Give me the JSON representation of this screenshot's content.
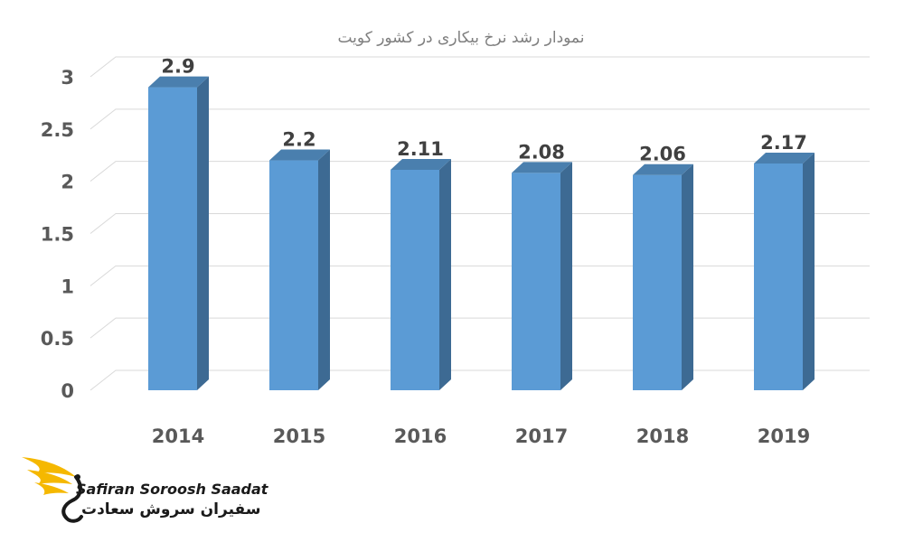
{
  "chart_data": {
    "type": "bar",
    "title": "نمودار رشد نرخ بیکاری در کشور کویت",
    "categories": [
      "2014",
      "2015",
      "2016",
      "2017",
      "2018",
      "2019"
    ],
    "values": [
      2.9,
      2.2,
      2.11,
      2.08,
      2.06,
      2.17
    ],
    "data_labels": [
      "2.9",
      "2.2",
      "2.11",
      "2.08",
      "2.06",
      "2.17"
    ],
    "yticks": [
      "0",
      "0.5",
      "1",
      "1.5",
      "2",
      "2.5",
      "3"
    ],
    "ylim": [
      0,
      3
    ],
    "grid": true,
    "bar_color": "#5b9bd5",
    "bar_side_color": "#3d6a93",
    "bar_top_color": "#4a7fae"
  },
  "logo": {
    "name_en": "Safiran Soroosh Saadat",
    "name_fa": "سفیران سروش سعادت",
    "accent_color": "#f5b800"
  }
}
